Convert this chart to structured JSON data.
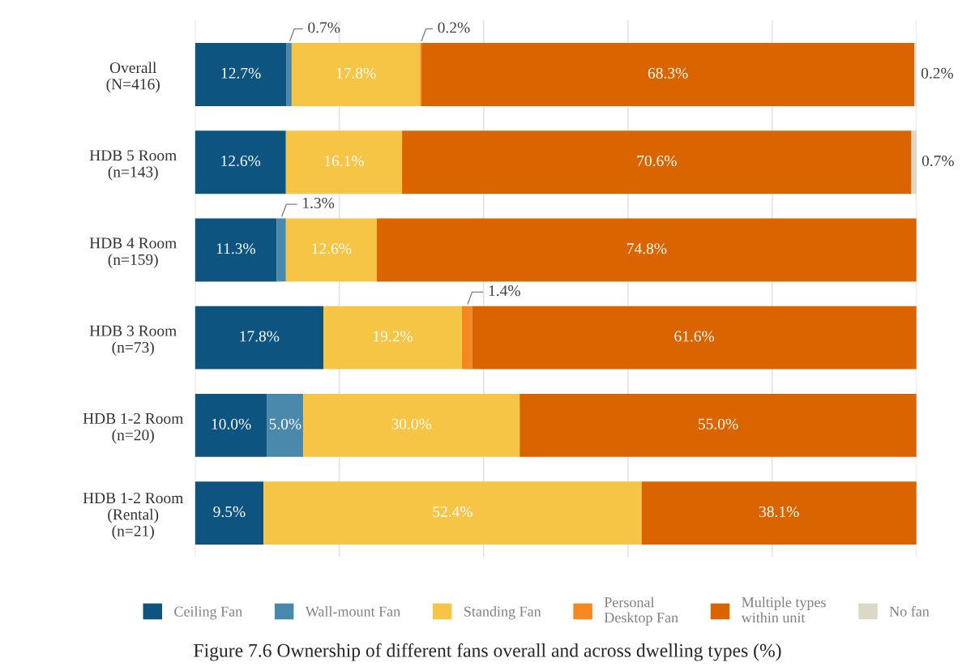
{
  "chart_data": {
    "type": "bar",
    "orientation": "horizontal",
    "stacked": true,
    "title": "Figure 7.6 Ownership of different fans overall and across dwelling types (%)",
    "categories": [
      "Overall\n(N=416)",
      "HDB 5 Room\n(n=143)",
      "HDB 4 Room\n(n=159)",
      "HDB 3 Room\n(n=73)",
      "HDB 1-2 Room\n(n=20)",
      "HDB 1-2 Room\n(Rental)\n(n=21)"
    ],
    "series": [
      {
        "name": "Ceiling Fan",
        "color": "#0d5580",
        "values": [
          12.7,
          12.6,
          11.3,
          17.8,
          10.0,
          9.5
        ],
        "value_labels": [
          "12.7%",
          "12.6%",
          "11.3%",
          "17.8%",
          "10.0%",
          "9.5%"
        ]
      },
      {
        "name": "Wall-mount Fan",
        "color": "#4a88ac",
        "values": [
          0.7,
          null,
          1.3,
          null,
          5.0,
          null
        ],
        "value_labels": [
          "0.7%",
          null,
          "1.3%",
          null,
          "5.0%",
          null
        ]
      },
      {
        "name": "Standing Fan",
        "color": "#f6c545",
        "values": [
          17.8,
          16.1,
          12.6,
          19.2,
          30.0,
          52.4
        ],
        "value_labels": [
          "17.8%",
          "16.1%",
          "12.6%",
          "19.2%",
          "30.0%",
          "52.4%"
        ]
      },
      {
        "name": "Personal\nDesktop Fan",
        "color": "#f5881e",
        "values": [
          0.2,
          null,
          null,
          1.4,
          null,
          null
        ],
        "value_labels": [
          "0.2%",
          null,
          null,
          "1.4%",
          null,
          null
        ]
      },
      {
        "name": "Multiple types\nwithin unit",
        "color": "#d96400",
        "values": [
          68.3,
          70.6,
          74.8,
          61.6,
          55.0,
          38.1
        ],
        "value_labels": [
          "68.3%",
          "70.6%",
          "74.8%",
          "61.6%",
          "55.0%",
          "38.1%"
        ]
      },
      {
        "name": "No fan",
        "color": "#dcd8c6",
        "values": [
          0.2,
          0.7,
          null,
          null,
          null,
          null
        ],
        "value_labels": [
          "0.2%",
          "0.7%",
          null,
          null,
          null,
          null
        ]
      }
    ],
    "xlim": [
      0,
      100
    ],
    "xticks": [
      {
        "value": 0,
        "label": null
      },
      {
        "value": 20,
        "label": null
      },
      {
        "value": 40,
        "label": null
      },
      {
        "value": 60,
        "label": null
      },
      {
        "value": 80,
        "label": null
      },
      {
        "value": 100,
        "label": null
      }
    ],
    "tick_labels": "y",
    "grid": "x",
    "legend": "bottom"
  }
}
